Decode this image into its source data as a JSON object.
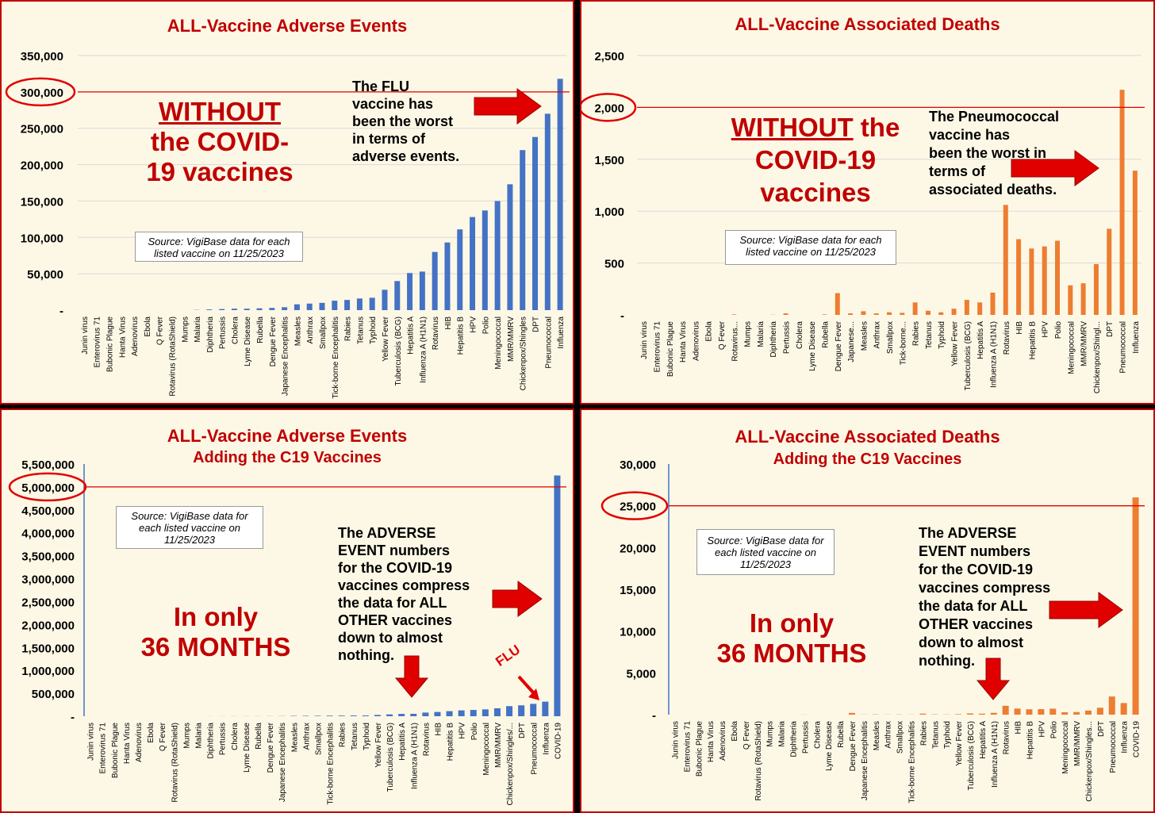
{
  "colors": {
    "blue": "#4472c4",
    "orange": "#ed7d31",
    "red": "#e00000",
    "dark_red": "#c00000"
  },
  "panels": {
    "tl": {
      "title": "ALL-Vaccine Adverse Events",
      "big_line1": "WITHOUT",
      "big_line2": "the COVID-",
      "big_line3": "19 vaccines",
      "note": [
        "The FLU",
        "vaccine has",
        "been the worst",
        "in terms of",
        "adverse events."
      ],
      "source": [
        "Source: VigiBase data for each",
        "listed vaccine on 11/25/2023"
      ]
    },
    "tr": {
      "title": "ALL-Vaccine Associated Deaths",
      "big_line1a": "WITHOUT",
      "big_line1b": " the",
      "big_line2": "COVID-19",
      "big_line3": "vaccines",
      "note": [
        "The Pneumococcal",
        "vaccine has",
        "been the worst in",
        "terms of",
        "associated deaths."
      ],
      "source": [
        "Source: VigiBase data for each",
        "listed vaccine on 11/25/2023"
      ]
    },
    "bl": {
      "title": "ALL-Vaccine Adverse Events",
      "subtitle": "Adding the C19 Vaccines",
      "big_line1": "In only",
      "big_line2": "36 MONTHS",
      "note": [
        "The ADVERSE",
        "EVENT numbers",
        "for the COVID-19",
        "vaccines compress",
        "the data for ALL",
        "OTHER vaccines",
        "down to almost",
        "nothing."
      ],
      "source": [
        "Source: VigiBase data for",
        "each listed vaccine on",
        "11/25/2023"
      ],
      "flu_label": "FLU"
    },
    "br": {
      "title": "ALL-Vaccine Associated Deaths",
      "subtitle": "Adding the C19 Vaccines",
      "big_line1": "In only",
      "big_line2": "36 MONTHS",
      "note": [
        "The ADVERSE",
        "EVENT numbers",
        "for the COVID-19",
        "vaccines compress",
        "the data for ALL",
        "OTHER vaccines",
        "down to almost",
        "nothing."
      ],
      "source": [
        "Source: VigiBase data for",
        "each listed vaccine on",
        "11/25/2023"
      ]
    }
  },
  "chart_data": [
    {
      "type": "bar",
      "title": "ALL-Vaccine Adverse Events",
      "ylim": [
        0,
        350000
      ],
      "yticks": [
        "-",
        "50,000",
        "100,000",
        "150,000",
        "200,000",
        "250,000",
        "300,000",
        "350,000"
      ],
      "reference_line": 300000,
      "circled_tick": "300,000",
      "grid": true,
      "categories": [
        "Junin virus",
        "Enterovirus 71",
        "Bubonic Plague",
        "Hanta Virus",
        "Adenovirus",
        "Ebola",
        "Q Fever",
        "Rotavirus (RotaShield)",
        "Mumps",
        "Malaria",
        "Diphtheria",
        "Pertussis",
        "Cholera",
        "Lyme Disease",
        "Rubella",
        "Dengue Fever",
        "Japanese Encephalitis",
        "Measles",
        "Anthrax",
        "Smallpox",
        "Tick-borne Encephalitis",
        "Rabies",
        "Tetanus",
        "Typhoid",
        "Yellow Fever",
        "Tuberculosis (BCG)",
        "Hepatitis A",
        "Influenza A (H1N1)",
        "Rotavirus",
        "HIB",
        "Hepatitis B",
        "HPV",
        "Polio",
        "Meningococcal",
        "MMR/MMRV",
        "Chickenpox/Shingles",
        "DPT",
        "Pneumococcal",
        "Influenza"
      ],
      "values": [
        0,
        0,
        0,
        0,
        0,
        0,
        0,
        0,
        0,
        300,
        1000,
        1500,
        2000,
        2000,
        2500,
        3000,
        4000,
        8000,
        9000,
        10000,
        13000,
        14000,
        16000,
        17000,
        28000,
        40000,
        51000,
        53000,
        80000,
        93000,
        111000,
        128000,
        137000,
        150000,
        173000,
        220000,
        238000,
        270000,
        318000
      ]
    },
    {
      "type": "bar",
      "title": "ALL-Vaccine Associated Deaths",
      "ylim": [
        0,
        2500
      ],
      "yticks": [
        "-",
        "500",
        "1,000",
        "1,500",
        "2,000",
        "2,500"
      ],
      "reference_line": 2000,
      "circled_tick": "2,000",
      "grid": true,
      "categories": [
        "Junin virus",
        "Enterovirus 71",
        "Bubonic Plague",
        "Hanta Virus",
        "Adenovirus",
        "Ebola",
        "Q Fever",
        "Rotavirus...",
        "Mumps",
        "Malaria",
        "Diphtheria",
        "Pertussis",
        "Cholera",
        "Lyme Disease",
        "Rubella",
        "Dengue Fever",
        "Japanese...",
        "Measles",
        "Anthrax",
        "Smallpox",
        "Tick-borne...",
        "Rabies",
        "Tetanus",
        "Typhoid",
        "Yellow Fever",
        "Tuberculosis (BCG)",
        "Hepatitis A",
        "Influenza A (H1N1)",
        "Rotavirus",
        "HIB",
        "Hepatitis B",
        "HPV",
        "Polio",
        "Meningococcal",
        "MMR/MMRV",
        "Chickenpox/Shingl...",
        "DPT",
        "Pneumococcal",
        "Influenza"
      ],
      "values": [
        0,
        0,
        0,
        0,
        0,
        0,
        0,
        5,
        0,
        0,
        2,
        15,
        0,
        0,
        5,
        210,
        15,
        35,
        15,
        25,
        20,
        120,
        40,
        25,
        60,
        145,
        120,
        215,
        1060,
        730,
        640,
        660,
        715,
        285,
        305,
        490,
        830,
        2170,
        1390
      ]
    },
    {
      "type": "bar",
      "title": "ALL-Vaccine Adverse Events",
      "subtitle": "Adding the C19 Vaccines",
      "ylim": [
        0,
        5500000
      ],
      "yticks": [
        "-",
        "500,000",
        "1,000,000",
        "1,500,000",
        "2,000,000",
        "2,500,000",
        "3,000,000",
        "3,500,000",
        "4,000,000",
        "4,500,000",
        "5,000,000",
        "5,500,000"
      ],
      "reference_line": 5000000,
      "circled_tick": "5,000,000",
      "grid": false,
      "categories": [
        "Junin virus",
        "Enterovirus 71",
        "Bubonic Plague",
        "Hanta Virus",
        "Adenovirus",
        "Ebola",
        "Q Fever",
        "Rotavirus (RotaShield)",
        "Mumps",
        "Malaria",
        "Diphtheria",
        "Pertussis",
        "Cholera",
        "Lyme Disease",
        "Rubella",
        "Dengue Fever",
        "Japanese Encephalitis",
        "Measles",
        "Anthrax",
        "Smallpox",
        "Tick-borne Encephalitis",
        "Rabies",
        "Tetanus",
        "Typhoid",
        "Yellow Fever",
        "Tuberculosis (BCG)",
        "Hepatitis A",
        "Influenza A (H1N1)",
        "Rotavirus",
        "HIB",
        "Hepatitis B",
        "HPV",
        "Polio",
        "Meningococcal",
        "MMR/MMRV",
        "Chickenpox/Shingles/...",
        "DPT",
        "Pneumococcal",
        "Influenza",
        "COVID-19"
      ],
      "values": [
        0,
        0,
        0,
        0,
        0,
        0,
        0,
        0,
        0,
        300,
        1000,
        1500,
        2000,
        2000,
        2500,
        3000,
        4000,
        8000,
        9000,
        10000,
        13000,
        14000,
        16000,
        17000,
        28000,
        40000,
        51000,
        53000,
        80000,
        93000,
        111000,
        128000,
        137000,
        150000,
        173000,
        220000,
        238000,
        270000,
        318000,
        5250000
      ]
    },
    {
      "type": "bar",
      "title": "ALL-Vaccine Associated Deaths",
      "subtitle": "Adding the C19 Vaccines",
      "ylim": [
        0,
        30000
      ],
      "yticks": [
        "-",
        "5,000",
        "10,000",
        "15,000",
        "20,000",
        "25,000",
        "30,000"
      ],
      "reference_line": 25000,
      "circled_tick": "25,000",
      "grid": false,
      "categories": [
        "Junin virus",
        "Enterovirus 71",
        "Bubonic Plague",
        "Hanta Virus",
        "Adenovirus",
        "Ebola",
        "Q Fever",
        "Rotavirus (RotaShield)",
        "Mumps",
        "Malaria",
        "Diphtheria",
        "Pertussis",
        "Cholera",
        "Lyme Disease",
        "Rubella",
        "Dengue Fever",
        "Japanese Encephalitis",
        "Measles",
        "Anthrax",
        "Smallpox",
        "Tick-borne Encephalitis",
        "Rabies",
        "Tetanus",
        "Typhoid",
        "Yellow Fever",
        "Tuberculosis (BCG)",
        "Hepatitis A",
        "Influenza A (H1N1)",
        "Rotavirus",
        "HIB",
        "Hepatitis B",
        "HPV",
        "Polio",
        "Meningococcal",
        "MMR/MMRV",
        "Chickenpox/Shingles...",
        "DPT",
        "Pneumococcal",
        "Influenza",
        "COVID-19"
      ],
      "values": [
        0,
        0,
        0,
        0,
        0,
        0,
        0,
        5,
        0,
        0,
        2,
        15,
        0,
        0,
        5,
        210,
        15,
        35,
        15,
        25,
        20,
        120,
        40,
        25,
        60,
        145,
        120,
        215,
        1060,
        730,
        640,
        660,
        715,
        285,
        305,
        490,
        830,
        2170,
        1390,
        26000
      ]
    }
  ]
}
